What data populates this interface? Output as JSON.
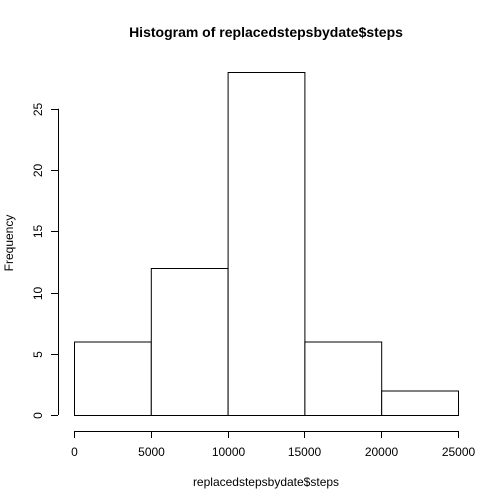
{
  "chart_data": {
    "type": "bar",
    "title": "Histogram of replacedstepsbydate$steps",
    "xlabel": "replacedstepsbydate$steps",
    "ylabel": "Frequency",
    "bins": [
      {
        "from": 0,
        "to": 5000,
        "count": 6
      },
      {
        "from": 5000,
        "to": 10000,
        "count": 12
      },
      {
        "from": 10000,
        "to": 15000,
        "count": 28
      },
      {
        "from": 15000,
        "to": 20000,
        "count": 6
      },
      {
        "from": 20000,
        "to": 25000,
        "count": 2
      }
    ],
    "xlim": [
      0,
      25000
    ],
    "ylim": [
      0,
      28
    ],
    "x_ticks": [
      0,
      5000,
      10000,
      15000,
      20000,
      25000
    ],
    "y_ticks": [
      0,
      5,
      10,
      15,
      20,
      25
    ],
    "grid": false,
    "legend": "none"
  }
}
